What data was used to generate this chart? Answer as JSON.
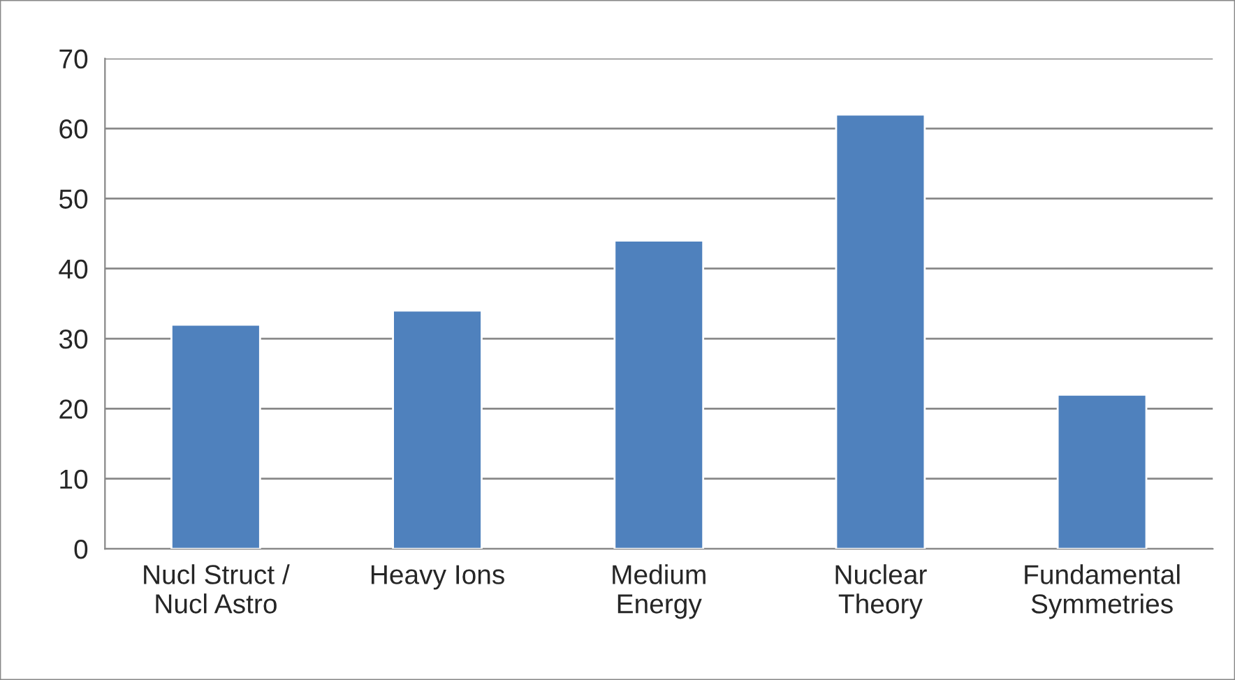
{
  "chart_data": {
    "type": "bar",
    "categories": [
      "Nucl Struct /\nNucl Astro",
      "Heavy Ions",
      "Medium\nEnergy",
      "Nuclear\nTheory",
      "Fundamental\nSymmetries"
    ],
    "values": [
      32,
      34,
      44,
      62,
      22
    ],
    "color": "#4f81bd",
    "ylim": [
      0,
      70
    ],
    "yticks": [
      0,
      10,
      20,
      30,
      40,
      50,
      60,
      70
    ],
    "grid": "y"
  }
}
